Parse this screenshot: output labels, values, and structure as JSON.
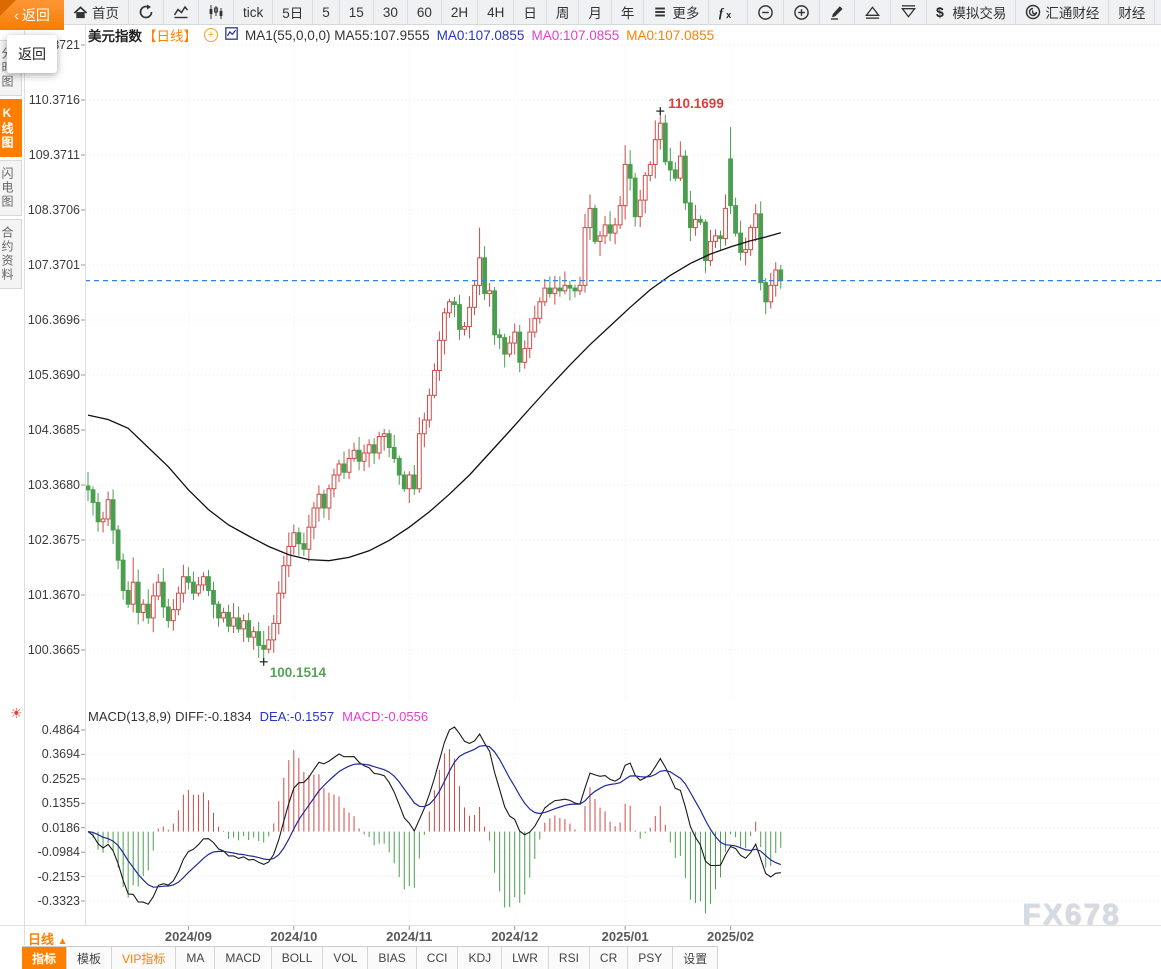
{
  "toolbar": {
    "back_label": "返回",
    "tooltip": "返回",
    "items": [
      {
        "name": "home",
        "icon": "home",
        "label": "首页"
      },
      {
        "name": "refresh",
        "icon": "refresh",
        "label": ""
      },
      {
        "name": "line-chart-mode",
        "icon": "line-chart",
        "label": ""
      },
      {
        "name": "candle-chart-mode",
        "icon": "candle-chart",
        "label": ""
      },
      {
        "name": "period-tick",
        "icon": "",
        "label": "tick"
      },
      {
        "name": "period-5d",
        "icon": "",
        "label": "5日"
      },
      {
        "name": "period-5m",
        "icon": "",
        "label": "5"
      },
      {
        "name": "period-15m",
        "icon": "",
        "label": "15"
      },
      {
        "name": "period-30m",
        "icon": "",
        "label": "30"
      },
      {
        "name": "period-60m",
        "icon": "",
        "label": "60"
      },
      {
        "name": "period-2h",
        "icon": "",
        "label": "2H"
      },
      {
        "name": "period-4h",
        "icon": "",
        "label": "4H"
      },
      {
        "name": "period-day",
        "icon": "",
        "label": "日"
      },
      {
        "name": "period-week",
        "icon": "",
        "label": "周"
      },
      {
        "name": "period-month",
        "icon": "",
        "label": "月"
      },
      {
        "name": "period-year",
        "icon": "",
        "label": "年"
      },
      {
        "name": "more-menu",
        "icon": "menu",
        "label": "更多"
      },
      {
        "name": "formula",
        "icon": "fx",
        "label": ""
      },
      {
        "name": "zoom-out",
        "icon": "zoom-out",
        "label": ""
      },
      {
        "name": "zoom-in",
        "icon": "zoom-in",
        "label": ""
      },
      {
        "name": "draw-tool",
        "icon": "pencil",
        "label": ""
      },
      {
        "name": "alert-up",
        "icon": "tri-up",
        "label": ""
      },
      {
        "name": "alert-down",
        "icon": "tri-down",
        "label": ""
      },
      {
        "name": "sim-trade",
        "icon": "dollar",
        "label": "模拟交易"
      },
      {
        "name": "fx678-site",
        "icon": "spiral",
        "label": "汇通财经"
      },
      {
        "name": "news",
        "icon": "",
        "label": "财经"
      }
    ]
  },
  "sidebar": {
    "tabs": [
      {
        "label": "分时图",
        "active": false
      },
      {
        "label": "K线图",
        "active": true
      },
      {
        "label": "闪电图",
        "active": false
      },
      {
        "label": "合约资料",
        "active": false
      }
    ]
  },
  "title_bar": {
    "symbol": "美元指数",
    "period": "【日线】",
    "ma_main": "MA1(55,0,0,0) MA55:107.9555",
    "ma0_blue": "MA0:107.0855",
    "ma0_magenta": "MA0:107.0855",
    "ma0_orange": "MA0:107.0855"
  },
  "macd_bar": {
    "params": "MACD(13,8,9)",
    "diff_label": "DIFF:-0.1834",
    "dea_label": "DEA:-0.1557",
    "macd_label": "MACD:-0.0556"
  },
  "bottom": {
    "period_label": "日线",
    "period_arrow": "▲",
    "tabs": [
      {
        "label": "指标",
        "active": true,
        "vip": false
      },
      {
        "label": "模板",
        "active": false,
        "vip": false
      },
      {
        "label": "VIP指标",
        "active": false,
        "vip": true
      },
      {
        "label": "MA",
        "active": false,
        "vip": false
      },
      {
        "label": "MACD",
        "active": false,
        "vip": false
      },
      {
        "label": "BOLL",
        "active": false,
        "vip": false
      },
      {
        "label": "VOL",
        "active": false,
        "vip": false
      },
      {
        "label": "BIAS",
        "active": false,
        "vip": false
      },
      {
        "label": "CCI",
        "active": false,
        "vip": false
      },
      {
        "label": "KDJ",
        "active": false,
        "vip": false
      },
      {
        "label": "LWR",
        "active": false,
        "vip": false
      },
      {
        "label": "RSI",
        "active": false,
        "vip": false
      },
      {
        "label": "CR",
        "active": false,
        "vip": false
      },
      {
        "label": "PSY",
        "active": false,
        "vip": false
      },
      {
        "label": "设置",
        "active": false,
        "vip": false
      }
    ]
  },
  "watermark": "FX678",
  "colors": {
    "accent_orange": "#ff8000",
    "candle_up": "#cf4a45",
    "candle_down": "#4a9e4f",
    "ma55_line": "#111111",
    "last_price_line": "#2e82e6",
    "diff_line": "#1a1a1a",
    "dea_line": "#1e2a96",
    "marker_high": "#e23b36",
    "marker_low": "#57a257"
  },
  "chart_data": {
    "type": "candlestick+macd",
    "symbol": "美元指数",
    "interval": "日线",
    "price_axis_labels": [
      "111.3721",
      "110.3716",
      "109.3711",
      "108.3706",
      "107.3701",
      "106.3696",
      "105.3690",
      "104.3685",
      "103.3680",
      "102.3675",
      "101.3670",
      "100.3665"
    ],
    "price_axis_values": [
      111.3721,
      110.3716,
      109.3711,
      108.3706,
      107.3701,
      106.3696,
      105.369,
      104.3685,
      103.368,
      102.3675,
      101.367,
      100.3665
    ],
    "macd_axis_labels": [
      "0.4864",
      "0.3694",
      "0.2525",
      "0.1355",
      "0.0186",
      "-0.0984",
      "-0.2153",
      "-0.3323"
    ],
    "macd_axis_values": [
      0.4864,
      0.3694,
      0.2525,
      0.1355,
      0.0186,
      -0.0984,
      -0.2153,
      -0.3323
    ],
    "x_ticks": [
      {
        "label": "2024/09",
        "idx": 20
      },
      {
        "label": "2024/10",
        "idx": 41
      },
      {
        "label": "2024/11",
        "idx": 64
      },
      {
        "label": "2024/12",
        "idx": 85
      },
      {
        "label": "2025/01",
        "idx": 107
      },
      {
        "label": "2025/02",
        "idx": 128
      }
    ],
    "candles": {
      "first_open": 103.35,
      "closes": [
        103.28,
        103.05,
        102.7,
        102.75,
        103.1,
        102.55,
        102.0,
        101.45,
        101.2,
        101.6,
        101.05,
        101.2,
        100.95,
        101.35,
        101.6,
        101.15,
        100.9,
        101.1,
        101.4,
        101.7,
        101.6,
        101.4,
        101.55,
        101.7,
        101.45,
        101.2,
        100.95,
        101.05,
        100.8,
        100.95,
        100.75,
        100.9,
        100.6,
        100.7,
        100.45,
        100.38,
        100.55,
        100.85,
        101.4,
        101.9,
        102.25,
        102.5,
        102.3,
        102.2,
        102.6,
        102.95,
        103.2,
        102.95,
        103.3,
        103.55,
        103.75,
        103.6,
        103.85,
        104.0,
        103.8,
        103.95,
        104.1,
        103.95,
        104.25,
        104.3,
        104.05,
        103.85,
        103.55,
        103.3,
        103.55,
        103.3,
        104.3,
        104.55,
        105.0,
        105.45,
        106.0,
        106.5,
        106.7,
        106.65,
        106.2,
        106.25,
        106.6,
        107.0,
        107.5,
        106.85,
        106.9,
        106.1,
        106.05,
        105.75,
        105.95,
        106.15,
        105.6,
        105.85,
        106.15,
        106.4,
        106.7,
        106.95,
        106.85,
        106.95,
        106.9,
        107.0,
        106.95,
        106.9,
        107.0,
        108.05,
        108.4,
        107.8,
        107.9,
        108.1,
        107.95,
        108.1,
        108.45,
        109.2,
        108.95,
        108.25,
        108.55,
        109.0,
        109.2,
        109.65,
        109.95,
        109.25,
        109.1,
        108.95,
        109.35,
        108.5,
        108.05,
        108.2,
        108.15,
        107.45,
        107.8,
        107.9,
        107.85,
        108.4,
        108.45,
        107.95,
        107.6,
        107.65,
        108.05,
        108.3,
        107.05,
        106.7,
        107.0,
        107.28,
        107.0855
      ],
      "wick_overrides": {
        "9": {
          "h": 102.05,
          "l": 101.05
        },
        "35": {
          "l": 100.1514
        },
        "66": {
          "h": 104.6
        },
        "78": {
          "h": 108.05
        },
        "86": {
          "l": 105.42
        },
        "99": {
          "h": 108.3
        },
        "107": {
          "h": 109.55
        },
        "113": {
          "h": 110.0
        },
        "114": {
          "h": 110.1699
        },
        "128": {
          "o": 109.3,
          "h": 109.88
        },
        "137": {
          "h": 107.42
        }
      }
    },
    "ma55_points": [
      [
        0,
        104.64
      ],
      [
        4,
        104.56
      ],
      [
        8,
        104.4
      ],
      [
        12,
        104.05
      ],
      [
        16,
        103.7
      ],
      [
        20,
        103.28
      ],
      [
        24,
        102.92
      ],
      [
        28,
        102.64
      ],
      [
        32,
        102.44
      ],
      [
        36,
        102.25
      ],
      [
        40,
        102.1
      ],
      [
        44,
        102.01
      ],
      [
        48,
        101.99
      ],
      [
        52,
        102.05
      ],
      [
        56,
        102.17
      ],
      [
        60,
        102.36
      ],
      [
        64,
        102.6
      ],
      [
        68,
        102.88
      ],
      [
        72,
        103.2
      ],
      [
        76,
        103.55
      ],
      [
        80,
        103.95
      ],
      [
        84,
        104.35
      ],
      [
        88,
        104.76
      ],
      [
        92,
        105.16
      ],
      [
        96,
        105.55
      ],
      [
        100,
        105.92
      ],
      [
        104,
        106.26
      ],
      [
        108,
        106.6
      ],
      [
        112,
        106.92
      ],
      [
        116,
        107.18
      ],
      [
        120,
        107.4
      ],
      [
        124,
        107.57
      ],
      [
        128,
        107.7
      ],
      [
        132,
        107.81
      ],
      [
        135,
        107.88
      ],
      [
        138,
        107.9555
      ]
    ],
    "last_price": 107.0855,
    "ma55_last": 107.9555,
    "markers": {
      "high": {
        "idx": 114,
        "price": 110.1699,
        "label": "110.1699"
      },
      "low": {
        "idx": 35,
        "price": 100.1514,
        "label": "100.1514"
      }
    },
    "macd": {
      "fast": 8,
      "slow": 13,
      "signal": 9,
      "diff": -0.1834,
      "dea": -0.1557,
      "hist": -0.0556
    }
  }
}
